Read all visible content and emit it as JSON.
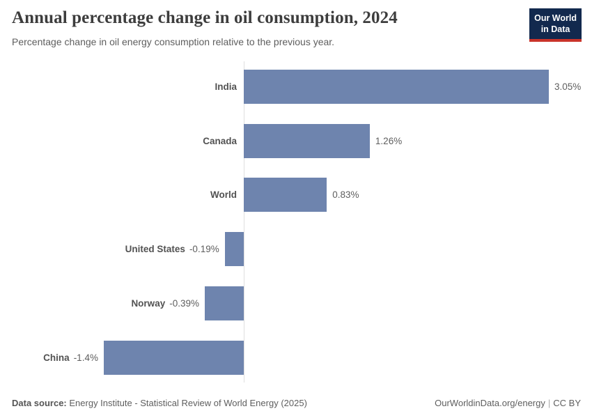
{
  "header": {
    "title": "Annual percentage change in oil consumption, 2024",
    "subtitle": "Percentage change in oil energy consumption relative to the previous year.",
    "logo": {
      "line1": "Our World",
      "line2": "in Data"
    }
  },
  "chart_data": {
    "type": "bar",
    "orientation": "horizontal",
    "title": "Annual percentage change in oil consumption, 2024",
    "categories": [
      "India",
      "Canada",
      "World",
      "United States",
      "Norway",
      "China"
    ],
    "values": [
      3.05,
      1.26,
      0.83,
      -0.19,
      -0.39,
      -1.4
    ],
    "value_labels": [
      "3.05%",
      "1.26%",
      "0.83%",
      "-0.19%",
      "-0.39%",
      "-1.4%"
    ],
    "unit": "%",
    "xlim": [
      -1.4,
      3.05
    ],
    "grid": false,
    "legend": "none",
    "bar_color": "#6e84ae",
    "axis_line_color": "#dedede"
  },
  "footer": {
    "datasource_label": "Data source:",
    "datasource_text": "Energy Institute - Statistical Review of World Energy (2025)",
    "site_link": "OurWorldinData.org/energy",
    "separator": "|",
    "license": "CC BY"
  },
  "colors": {
    "bar": "#6e84ae",
    "axis_line": "#dedede",
    "logo_navy": "#12294e",
    "logo_red": "#c9342a",
    "title_text": "#3d3d3d",
    "muted_text": "#5e5e5e"
  }
}
